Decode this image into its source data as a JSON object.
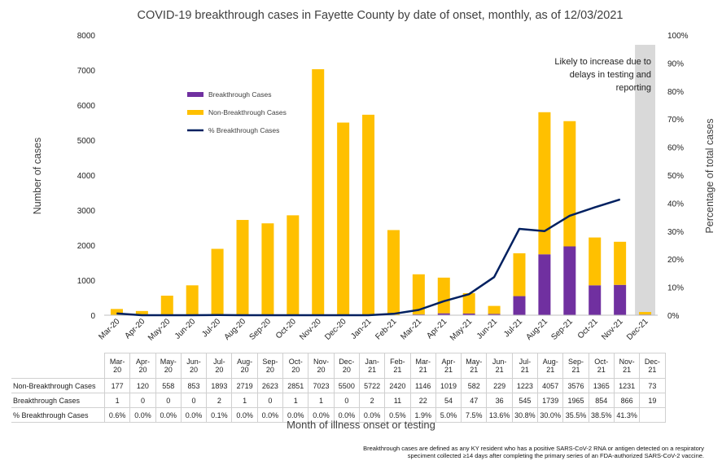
{
  "chart_data": {
    "type": "bar",
    "stacked": true,
    "title": "COVID-19 breakthrough cases in Fayette County by date of onset, monthly, as of 12/03/2021",
    "ylabel": "Number of cases",
    "y2label": "Percentage of total cases",
    "xlabel": "Month of illness onset or testing",
    "ylim": [
      0,
      8000
    ],
    "y2lim": [
      0,
      100
    ],
    "y_ticks": [
      "0",
      "1000",
      "2000",
      "3000",
      "4000",
      "5000",
      "6000",
      "7000",
      "8000"
    ],
    "y2_ticks": [
      "0%",
      "10%",
      "20%",
      "30%",
      "40%",
      "50%",
      "60%",
      "70%",
      "80%",
      "90%",
      "100%"
    ],
    "categories": [
      "Mar-20",
      "Apr-20",
      "May-20",
      "Jun-20",
      "Jul-20",
      "Aug-20",
      "Sep-20",
      "Oct-20",
      "Nov-20",
      "Dec-20",
      "Jan-21",
      "Feb-21",
      "Mar-21",
      "Apr-21",
      "May-21",
      "Jun-21",
      "Jul-21",
      "Aug-21",
      "Sep-21",
      "Oct-21",
      "Nov-21",
      "Dec-21"
    ],
    "table_headers": [
      [
        "Mar-",
        "20"
      ],
      [
        "Apr-",
        "20"
      ],
      [
        "May-",
        "20"
      ],
      [
        "Jun-",
        "20"
      ],
      [
        "Jul-",
        "20"
      ],
      [
        "Aug-",
        "20"
      ],
      [
        "Sep-",
        "20"
      ],
      [
        "Oct-",
        "20"
      ],
      [
        "Nov-",
        "20"
      ],
      [
        "Dec-",
        "20"
      ],
      [
        "Jan-",
        "21"
      ],
      [
        "Feb-",
        "21"
      ],
      [
        "Mar-",
        "21"
      ],
      [
        "Apr-",
        "21"
      ],
      [
        "May-",
        "21"
      ],
      [
        "Jun-",
        "21"
      ],
      [
        "Jul-",
        "21"
      ],
      [
        "Aug-",
        "21"
      ],
      [
        "Sep-",
        "21"
      ],
      [
        "Oct-",
        "21"
      ],
      [
        "Nov-",
        "21"
      ],
      [
        "Dec-",
        "21"
      ]
    ],
    "series": [
      {
        "name": "Breakthrough Cases",
        "table_label": "Breakthrough Cases",
        "color": "#7030A0",
        "values": [
          1,
          0,
          0,
          0,
          2,
          1,
          0,
          1,
          1,
          0,
          2,
          11,
          22,
          54,
          47,
          36,
          545,
          1739,
          1965,
          854,
          866,
          19
        ]
      },
      {
        "name": "Non-Breakthrough Cases",
        "table_label": "Non-Breakthrough Cases",
        "color": "#FFC000",
        "values": [
          177,
          120,
          558,
          853,
          1893,
          2719,
          2623,
          2851,
          7023,
          5500,
          5722,
          2420,
          1146,
          1019,
          582,
          229,
          1223,
          4057,
          3576,
          1365,
          1231,
          73
        ]
      },
      {
        "name": "% Breakthrough Cases",
        "table_label": "% Breakthrough Cases",
        "color": "#002060",
        "type": "line",
        "axis": "right",
        "values": [
          0.6,
          0.0,
          0.0,
          0.0,
          0.1,
          0.0,
          0.0,
          0.0,
          0.0,
          0.0,
          0.0,
          0.5,
          1.9,
          5.0,
          7.5,
          13.6,
          30.8,
          30.0,
          35.5,
          38.5,
          41.3,
          null
        ],
        "labels": [
          "0.6%",
          "0.0%",
          "0.0%",
          "0.0%",
          "0.1%",
          "0.0%",
          "0.0%",
          "0.0%",
          "0.0%",
          "0.0%",
          "0.0%",
          "0.5%",
          "1.9%",
          "5.0%",
          "7.5%",
          "13.6%",
          "30.8%",
          "30.0%",
          "35.5%",
          "38.5%",
          "41.3%",
          ""
        ]
      }
    ],
    "table_order": [
      1,
      0,
      2
    ],
    "shaded_category": "Dec-21",
    "annotation": [
      "Likely to increase due to",
      "delays in testing and",
      "reporting"
    ],
    "legend_position": "upper-left inside plot",
    "footnote": [
      "Breakthrough cases are defined as any KY resident who has a positive SARS-CoV-2 RNA or antigen detected on a respiratory",
      "speciment collected ≥14 days after completing the primary series of an FDA-authorized SARS-CoV-2 vaccine."
    ]
  }
}
